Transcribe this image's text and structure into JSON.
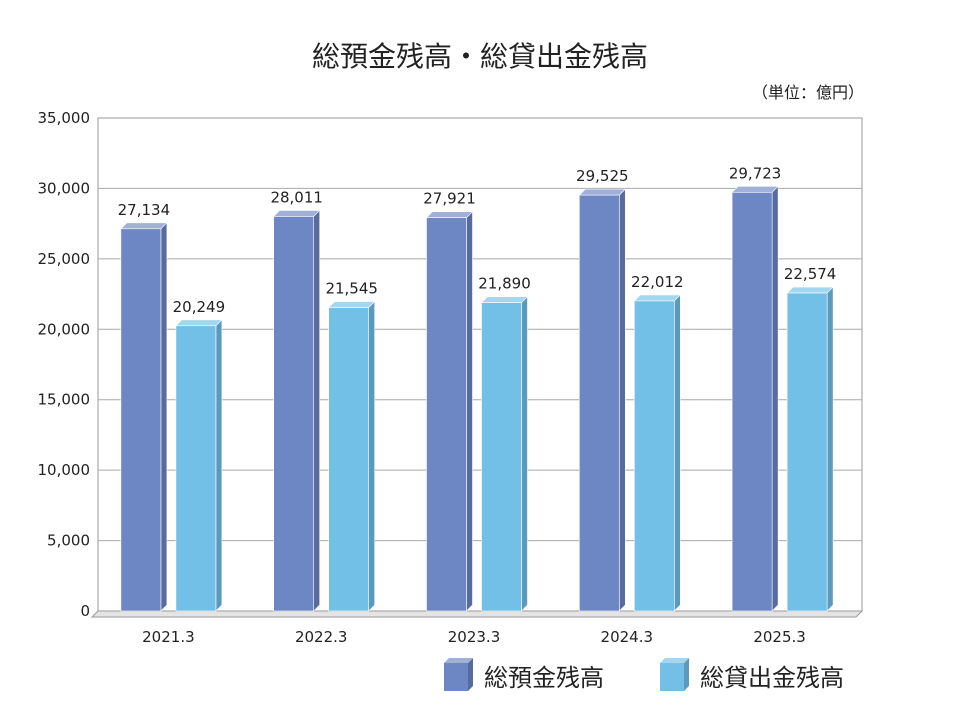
{
  "chart_data": {
    "type": "bar",
    "title": "総預金残高・総貸出金残高",
    "unit": "（単位：億円）",
    "categories": [
      "2021.3",
      "2022.3",
      "2023.3",
      "2024.3",
      "2025.3"
    ],
    "series": [
      {
        "name": "総預金残高",
        "values": [
          27134,
          28011,
          27921,
          29525,
          29723
        ],
        "color": "#6d86c4"
      },
      {
        "name": "総貸出金残高",
        "values": [
          20249,
          21545,
          21890,
          22012,
          22574
        ],
        "color": "#72c0e8"
      }
    ],
    "ylim": [
      0,
      35000
    ],
    "yticks": [
      "0",
      "5,000",
      "10,000",
      "15,000",
      "20,000",
      "25,000",
      "30,000",
      "35,000"
    ],
    "grid": true,
    "legend_position": "bottom-right"
  }
}
